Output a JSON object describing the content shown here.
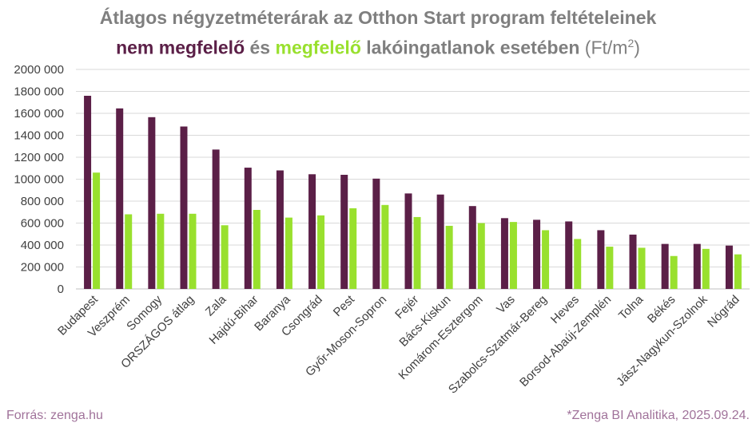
{
  "title": {
    "line1": "Átlagos négyzetméterárak az Otthon Start program feltételeinek",
    "part1": "nem megfelelő",
    "part2": " és ",
    "part3": "megfelelő",
    "part4": " lakóingatlanok esetében",
    "part5": " (Ft/m",
    "sup": "2",
    "part6": ")"
  },
  "footer": {
    "source": "Forrás: zenga.hu",
    "credit": "*Zenga BI Analitika, 2025.09.24."
  },
  "colors": {
    "nem_megfelelo": "#5b1f47",
    "megfelelo": "#99e02e",
    "title_gray": "#7f7f7f",
    "footer": "#a0729a"
  },
  "chart_data": {
    "type": "bar",
    "categories": [
      "Budapest",
      "Veszprém",
      "Somogy",
      "ORSZÁGOS átlag",
      "Zala",
      "Hajdú-Bihar",
      "Baranya",
      "Csongrád",
      "Pest",
      "Győr-Moson-Sopron",
      "Fejér",
      "Bács-Kiskun",
      "Komárom-Esztergom",
      "Vas",
      "Szabolcs-Szatmár-Bereg",
      "Heves",
      "Borsod-Abaúj-Zemplén",
      "Tolna",
      "Békés",
      "Jász-Nagykun-Szolnok",
      "Nógrád"
    ],
    "series": [
      {
        "name": "nem megfelelő",
        "values": [
          1760000,
          1645000,
          1565000,
          1480000,
          1270000,
          1105000,
          1080000,
          1045000,
          1040000,
          1005000,
          870000,
          860000,
          755000,
          645000,
          630000,
          615000,
          535000,
          495000,
          410000,
          410000,
          395000
        ]
      },
      {
        "name": "megfelelő",
        "values": [
          1060000,
          680000,
          685000,
          685000,
          580000,
          720000,
          650000,
          670000,
          735000,
          765000,
          655000,
          575000,
          600000,
          610000,
          535000,
          455000,
          385000,
          375000,
          300000,
          365000,
          315000
        ]
      }
    ],
    "yticks": [
      "0",
      "200 000",
      "400 000",
      "600 000",
      "800 000",
      "1000 000",
      "1200 000",
      "1400 000",
      "1600 000",
      "1800 000",
      "2000 000"
    ],
    "ylim": [
      0,
      2000000
    ],
    "grid": true
  }
}
